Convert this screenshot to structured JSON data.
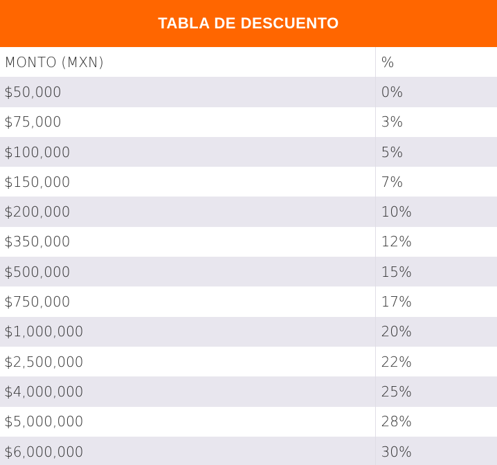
{
  "title": "TABLA DE DESCUENTO",
  "header": {
    "amount": "MONTO (MXN)",
    "percent": "%"
  },
  "rows": [
    {
      "amount": "$50,000",
      "percent": "0%"
    },
    {
      "amount": "$75,000",
      "percent": "3%"
    },
    {
      "amount": "$100,000",
      "percent": "5%"
    },
    {
      "amount": "$150,000",
      "percent": "7%"
    },
    {
      "amount": "$200,000",
      "percent": "10%"
    },
    {
      "amount": "$350,000",
      "percent": "12%"
    },
    {
      "amount": "$500,000",
      "percent": "15%"
    },
    {
      "amount": "$750,000",
      "percent": "17%"
    },
    {
      "amount": "$1,000,000",
      "percent": "20%"
    },
    {
      "amount": "$2,500,000",
      "percent": "22%"
    },
    {
      "amount": "$4,000,000",
      "percent": "25%"
    },
    {
      "amount": "$5,000,000",
      "percent": "28%"
    },
    {
      "amount": "$6,000,000",
      "percent": "30%"
    }
  ],
  "colors": {
    "header_bg": "#ff6600",
    "stripe": "#e8e6ee",
    "text": "#2b2b2b"
  }
}
